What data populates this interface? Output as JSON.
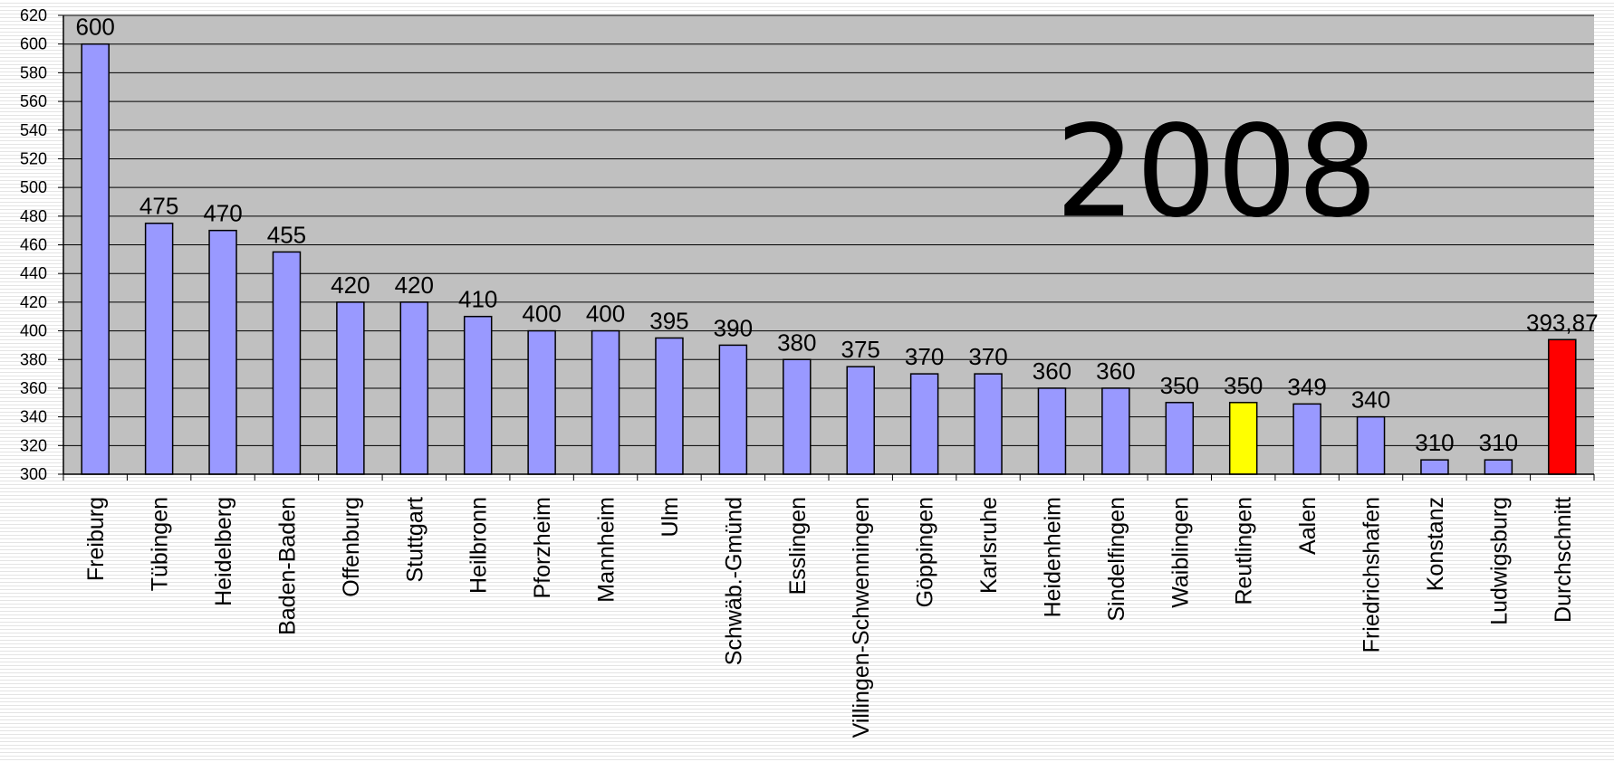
{
  "chart_data": {
    "type": "bar",
    "annotation": "2008",
    "categories": [
      "Freiburg",
      "Tübingen",
      "Heidelberg",
      "Baden-Baden",
      "Offenburg",
      "Stuttgart",
      "Heilbronn",
      "Pforzheim",
      "Mannheim",
      "Ulm",
      "Schwäb.-Gmünd",
      "Esslingen",
      "Villingen-Schwenningen",
      "Göppingen",
      "Karlsruhe",
      "Heidenheim",
      "Sindelfingen",
      "Waiblingen",
      "Reutlingen",
      "Aalen",
      "Friedrichshafen",
      "Konstanz",
      "Ludwigsburg",
      "Durchschnitt"
    ],
    "values": [
      600,
      475,
      470,
      455,
      420,
      420,
      410,
      400,
      400,
      395,
      390,
      380,
      375,
      370,
      370,
      360,
      360,
      350,
      350,
      349,
      340,
      310,
      310,
      393.87
    ],
    "data_labels": [
      "600",
      "475",
      "470",
      "455",
      "420",
      "420",
      "410",
      "400",
      "400",
      "395",
      "390",
      "380",
      "375",
      "370",
      "370",
      "360",
      "360",
      "350",
      "350",
      "349",
      "340",
      "310",
      "310",
      "393,87"
    ],
    "bar_colors": [
      "#9999ff",
      "#9999ff",
      "#9999ff",
      "#9999ff",
      "#9999ff",
      "#9999ff",
      "#9999ff",
      "#9999ff",
      "#9999ff",
      "#9999ff",
      "#9999ff",
      "#9999ff",
      "#9999ff",
      "#9999ff",
      "#9999ff",
      "#9999ff",
      "#9999ff",
      "#9999ff",
      "#ffff00",
      "#9999ff",
      "#9999ff",
      "#9999ff",
      "#9999ff",
      "#ff0000"
    ],
    "ylim": [
      300,
      620
    ],
    "yticks": [
      300,
      320,
      340,
      360,
      380,
      400,
      420,
      440,
      460,
      480,
      500,
      520,
      540,
      560,
      580,
      600,
      620
    ],
    "grid": true,
    "plot_background": "#c0c0c0",
    "xlabel": "",
    "ylabel": ""
  }
}
